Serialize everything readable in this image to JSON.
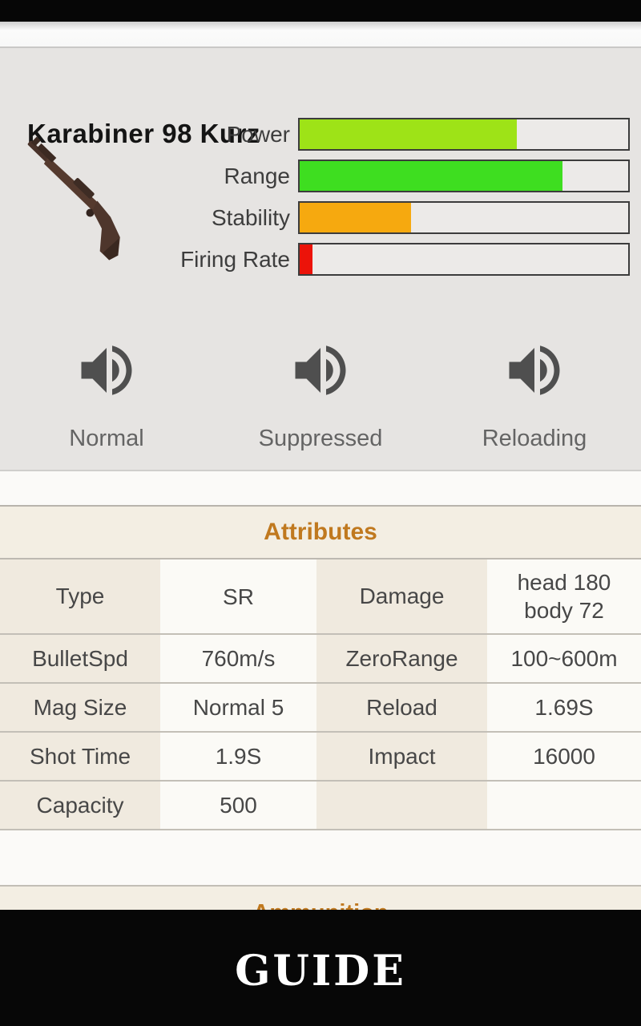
{
  "weapon": {
    "name": "Karabiner 98 Kurz",
    "stats": [
      {
        "label": "Power",
        "percent": 66,
        "color": "#9ee317"
      },
      {
        "label": "Range",
        "percent": 80,
        "color": "#3ede20"
      },
      {
        "label": "Stability",
        "percent": 34,
        "color": "#f6a90f"
      },
      {
        "label": "Firing Rate",
        "percent": 4,
        "color": "#ec1309"
      }
    ]
  },
  "sounds": [
    {
      "label": "Normal"
    },
    {
      "label": "Suppressed"
    },
    {
      "label": "Reloading"
    }
  ],
  "attributes": {
    "title": "Attributes",
    "rows": [
      {
        "l1": "Type",
        "v1": "SR",
        "l2": "Damage",
        "v2": "head 180\nbody 72"
      },
      {
        "l1": "BulletSpd",
        "v1": "760m/s",
        "l2": "ZeroRange",
        "v2": "100~600m"
      },
      {
        "l1": "Mag Size",
        "v1": "Normal 5",
        "l2": "Reload",
        "v2": "1.69S"
      },
      {
        "l1": "Shot Time",
        "v1": "1.9S",
        "l2": "Impact",
        "v2": "16000"
      },
      {
        "l1": "Capacity",
        "v1": "500",
        "l2": "",
        "v2": ""
      }
    ]
  },
  "next_section": {
    "title": "Ammunition"
  },
  "footer": {
    "label": "GUIDE"
  },
  "colors": {
    "panel_bg": "#e6e4e2",
    "card_bg": "#f3eee3",
    "accent_orange": "#c0791f",
    "bar_border": "#3c3c3c"
  }
}
